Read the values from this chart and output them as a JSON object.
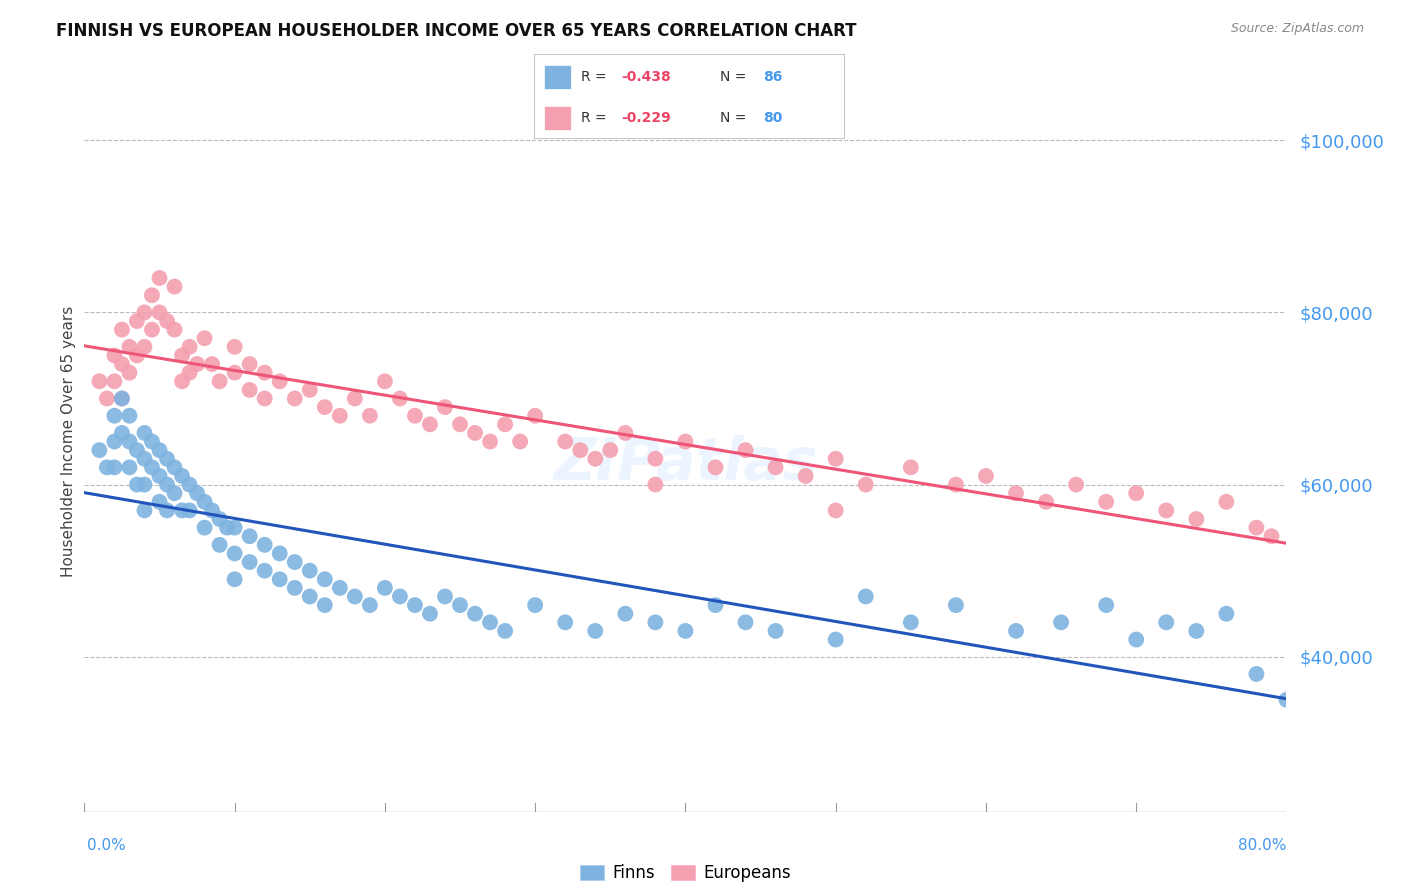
{
  "title": "FINNISH VS EUROPEAN HOUSEHOLDER INCOME OVER 65 YEARS CORRELATION CHART",
  "source": "Source: ZipAtlas.com",
  "ylabel": "Householder Income Over 65 years",
  "yticks": [
    40000,
    60000,
    80000,
    100000
  ],
  "ytick_labels": [
    "$40,000",
    "$60,000",
    "$80,000",
    "$100,000"
  ],
  "xmin": 0.0,
  "xmax": 0.8,
  "ymin": 22000,
  "ymax": 108000,
  "finns_R": -0.438,
  "finns_N": 86,
  "europeans_R": -0.229,
  "europeans_N": 80,
  "finns_color": "#7EB3E0",
  "europeans_color": "#F4A0B0",
  "finns_line_color": "#2255BB",
  "europeans_line_color": "#EE5577",
  "watermark": "ZIPatlas",
  "finns_x": [
    0.01,
    0.015,
    0.02,
    0.02,
    0.02,
    0.025,
    0.025,
    0.03,
    0.03,
    0.03,
    0.035,
    0.035,
    0.04,
    0.04,
    0.04,
    0.04,
    0.045,
    0.045,
    0.05,
    0.05,
    0.05,
    0.055,
    0.055,
    0.055,
    0.06,
    0.06,
    0.065,
    0.065,
    0.07,
    0.07,
    0.075,
    0.08,
    0.08,
    0.085,
    0.09,
    0.09,
    0.095,
    0.1,
    0.1,
    0.1,
    0.11,
    0.11,
    0.12,
    0.12,
    0.13,
    0.13,
    0.14,
    0.14,
    0.15,
    0.15,
    0.16,
    0.16,
    0.17,
    0.18,
    0.19,
    0.2,
    0.21,
    0.22,
    0.23,
    0.24,
    0.25,
    0.26,
    0.27,
    0.28,
    0.3,
    0.32,
    0.34,
    0.36,
    0.38,
    0.4,
    0.42,
    0.44,
    0.46,
    0.5,
    0.52,
    0.55,
    0.58,
    0.62,
    0.65,
    0.68,
    0.7,
    0.72,
    0.74,
    0.76,
    0.78,
    0.8
  ],
  "finns_y": [
    64000,
    62000,
    68000,
    65000,
    62000,
    70000,
    66000,
    68000,
    65000,
    62000,
    64000,
    60000,
    66000,
    63000,
    60000,
    57000,
    65000,
    62000,
    64000,
    61000,
    58000,
    63000,
    60000,
    57000,
    62000,
    59000,
    61000,
    57000,
    60000,
    57000,
    59000,
    58000,
    55000,
    57000,
    56000,
    53000,
    55000,
    55000,
    52000,
    49000,
    54000,
    51000,
    53000,
    50000,
    52000,
    49000,
    51000,
    48000,
    50000,
    47000,
    49000,
    46000,
    48000,
    47000,
    46000,
    48000,
    47000,
    46000,
    45000,
    47000,
    46000,
    45000,
    44000,
    43000,
    46000,
    44000,
    43000,
    45000,
    44000,
    43000,
    46000,
    44000,
    43000,
    42000,
    47000,
    44000,
    46000,
    43000,
    44000,
    46000,
    42000,
    44000,
    43000,
    45000,
    38000,
    35000
  ],
  "europeans_x": [
    0.01,
    0.015,
    0.02,
    0.02,
    0.025,
    0.025,
    0.025,
    0.03,
    0.03,
    0.035,
    0.035,
    0.04,
    0.04,
    0.045,
    0.045,
    0.05,
    0.05,
    0.055,
    0.06,
    0.06,
    0.065,
    0.065,
    0.07,
    0.07,
    0.075,
    0.08,
    0.085,
    0.09,
    0.1,
    0.1,
    0.11,
    0.11,
    0.12,
    0.12,
    0.13,
    0.14,
    0.15,
    0.16,
    0.17,
    0.18,
    0.19,
    0.2,
    0.21,
    0.22,
    0.23,
    0.24,
    0.25,
    0.26,
    0.27,
    0.28,
    0.29,
    0.3,
    0.32,
    0.33,
    0.34,
    0.35,
    0.36,
    0.38,
    0.4,
    0.42,
    0.44,
    0.46,
    0.48,
    0.5,
    0.52,
    0.55,
    0.58,
    0.6,
    0.62,
    0.64,
    0.66,
    0.68,
    0.7,
    0.72,
    0.74,
    0.76,
    0.78,
    0.79,
    0.5,
    0.38
  ],
  "europeans_y": [
    72000,
    70000,
    75000,
    72000,
    78000,
    74000,
    70000,
    76000,
    73000,
    79000,
    75000,
    80000,
    76000,
    82000,
    78000,
    84000,
    80000,
    79000,
    83000,
    78000,
    75000,
    72000,
    76000,
    73000,
    74000,
    77000,
    74000,
    72000,
    76000,
    73000,
    74000,
    71000,
    73000,
    70000,
    72000,
    70000,
    71000,
    69000,
    68000,
    70000,
    68000,
    72000,
    70000,
    68000,
    67000,
    69000,
    67000,
    66000,
    65000,
    67000,
    65000,
    68000,
    65000,
    64000,
    63000,
    64000,
    66000,
    63000,
    65000,
    62000,
    64000,
    62000,
    61000,
    63000,
    60000,
    62000,
    60000,
    61000,
    59000,
    58000,
    60000,
    58000,
    59000,
    57000,
    56000,
    58000,
    55000,
    54000,
    57000,
    60000
  ]
}
